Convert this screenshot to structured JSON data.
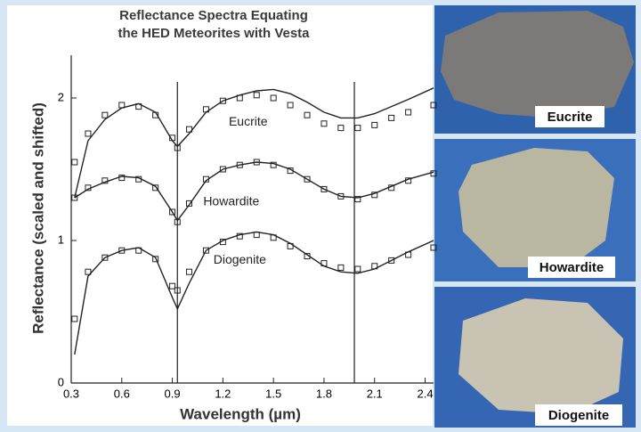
{
  "chart_data": {
    "type": "line",
    "title": [
      "Reflectance Spectra Equating",
      "the HED Meteorites with Vesta"
    ],
    "x_label": "Wavelength (µm)",
    "y_label": "Reflectance (scaled and shifted)",
    "x": [
      0.32,
      0.4,
      0.5,
      0.6,
      0.7,
      0.8,
      0.9,
      0.93,
      1.0,
      1.1,
      1.2,
      1.3,
      1.4,
      1.5,
      1.6,
      1.7,
      1.8,
      1.9,
      2.0,
      2.1,
      2.2,
      2.3,
      2.45
    ],
    "series": [
      {
        "name": "Eucrite",
        "color": "#222222",
        "values": [
          1.3,
          1.7,
          1.85,
          1.93,
          1.96,
          1.9,
          1.7,
          1.66,
          1.75,
          1.9,
          1.98,
          2.02,
          2.05,
          2.06,
          2.03,
          1.97,
          1.9,
          1.86,
          1.86,
          1.89,
          1.94,
          1.99,
          2.07
        ],
        "points": [
          1.55,
          1.75,
          1.88,
          1.95,
          1.94,
          1.88,
          1.72,
          1.65,
          1.78,
          1.92,
          1.98,
          2.0,
          2.02,
          2.0,
          1.95,
          1.88,
          1.82,
          1.79,
          1.79,
          1.81,
          1.86,
          1.9,
          1.95
        ]
      },
      {
        "name": "Howardite",
        "color": "#222222",
        "values": [
          1.3,
          1.36,
          1.41,
          1.45,
          1.44,
          1.38,
          1.2,
          1.14,
          1.25,
          1.42,
          1.5,
          1.53,
          1.55,
          1.54,
          1.5,
          1.43,
          1.36,
          1.31,
          1.3,
          1.33,
          1.38,
          1.43,
          1.48
        ],
        "points": [
          1.3,
          1.37,
          1.42,
          1.44,
          1.43,
          1.37,
          1.2,
          1.13,
          1.26,
          1.43,
          1.5,
          1.53,
          1.55,
          1.53,
          1.49,
          1.43,
          1.36,
          1.31,
          1.29,
          1.32,
          1.37,
          1.42,
          1.47
        ]
      },
      {
        "name": "Diogenite",
        "color": "#222222",
        "values": [
          0.2,
          0.75,
          0.88,
          0.93,
          0.95,
          0.88,
          0.6,
          0.52,
          0.7,
          0.93,
          1.0,
          1.04,
          1.06,
          1.04,
          0.98,
          0.9,
          0.82,
          0.78,
          0.77,
          0.8,
          0.86,
          0.92,
          1.0
        ],
        "points": [
          0.45,
          0.78,
          0.88,
          0.93,
          0.93,
          0.87,
          0.68,
          0.65,
          0.78,
          0.93,
          0.99,
          1.03,
          1.04,
          1.02,
          0.96,
          0.89,
          0.84,
          0.81,
          0.8,
          0.82,
          0.86,
          0.9,
          0.95
        ]
      }
    ],
    "reference_lines": [
      0.93,
      1.98
    ],
    "xlim": [
      0.3,
      2.45
    ],
    "ylim": [
      0,
      2.3
    ],
    "xticks": [
      0.3,
      0.6,
      0.9,
      1.2,
      1.5,
      1.8,
      2.1,
      2.4
    ],
    "yticks": [
      0,
      1,
      2
    ]
  },
  "photos": [
    {
      "label": "Eucrite"
    },
    {
      "label": "Howardite"
    },
    {
      "label": "Diogenite"
    }
  ]
}
